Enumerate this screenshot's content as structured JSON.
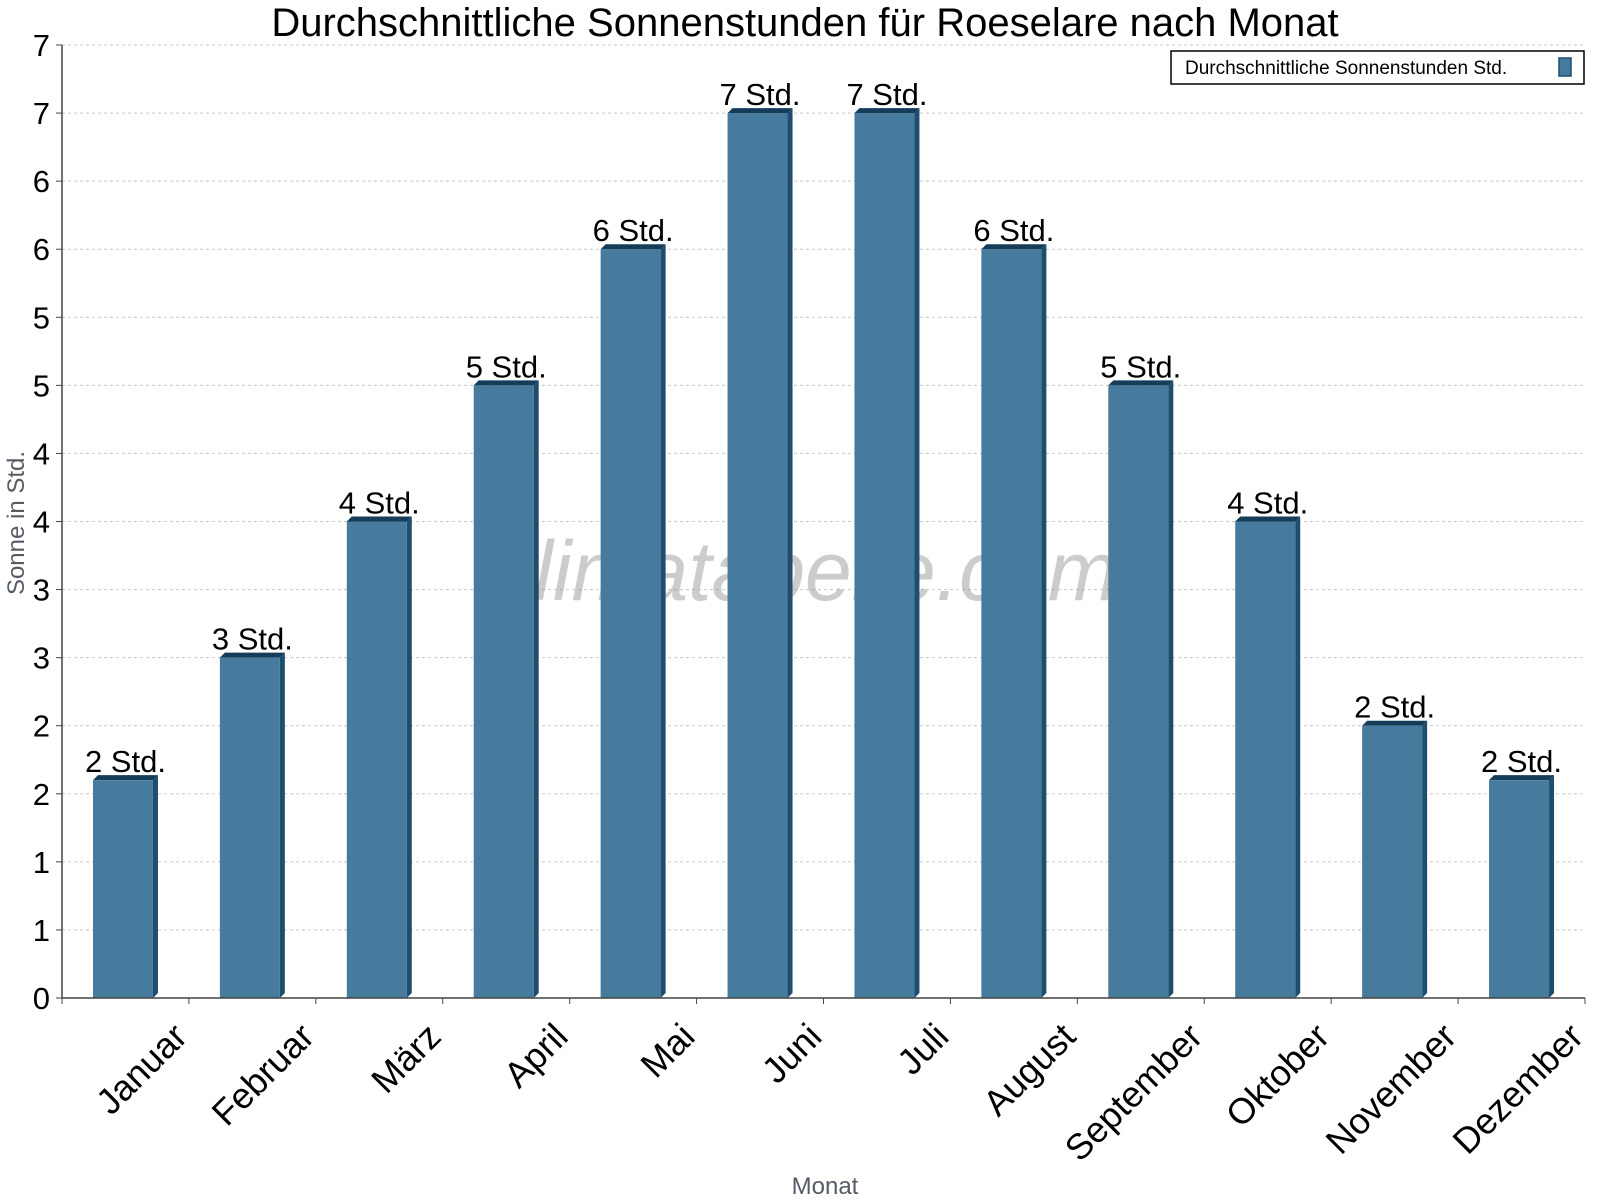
{
  "chart_data": {
    "type": "bar",
    "title": "Durchschnittliche Sonnenstunden für Roeselare nach Monat",
    "xlabel": "Monat",
    "ylabel": "Sonne in Std.",
    "categories": [
      "Januar",
      "Februar",
      "März",
      "April",
      "Mai",
      "Juni",
      "Juli",
      "August",
      "September",
      "Oktober",
      "November",
      "Dezember"
    ],
    "series": [
      {
        "name": "Durchschnittliche Sonnenstunden Std.",
        "values": [
          1.6,
          2.5,
          3.5,
          4.5,
          5.5,
          6.5,
          6.5,
          5.5,
          4.5,
          3.5,
          2.0,
          1.6
        ],
        "labels": [
          "2 Std.",
          "3 Std.",
          "4 Std.",
          "5 Std.",
          "6 Std.",
          "7 Std.",
          "7 Std.",
          "6 Std.",
          "5 Std.",
          "4 Std.",
          "2 Std.",
          "2 Std."
        ]
      }
    ],
    "ylim": [
      0,
      7
    ],
    "yticks": [
      0,
      0.5,
      1,
      1.5,
      2,
      2.5,
      3,
      3.5,
      4,
      4.5,
      5,
      5.5,
      6,
      6.5,
      7
    ],
    "ytick_labels": [
      "0",
      "1",
      "1",
      "2",
      "2",
      "3",
      "3",
      "4",
      "4",
      "5",
      "5",
      "6",
      "6",
      "7",
      "7"
    ],
    "grid": true,
    "legend_position": "top-right",
    "watermark": "klimatabelle.com",
    "colors": {
      "bar_face": "#467b9e",
      "bar_side": "#1e4d6e",
      "bar_top": "#153c58",
      "grid": "#c8c8c8",
      "axis": "#444444"
    }
  }
}
